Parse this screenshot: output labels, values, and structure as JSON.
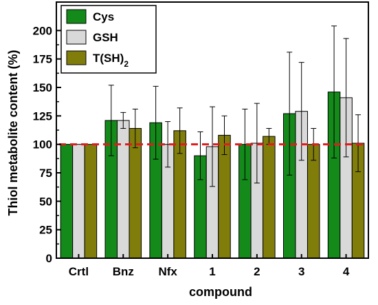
{
  "chart_data": {
    "type": "bar",
    "xlabel": "compound",
    "ylabel": "Thiol metabolite content (%)",
    "categories": [
      "Crtl",
      "Bnz",
      "Nfx",
      "1",
      "2",
      "3",
      "4"
    ],
    "ylim": [
      0,
      225
    ],
    "yticks": [
      0,
      25,
      50,
      75,
      100,
      125,
      150,
      175,
      200
    ],
    "reference_line": {
      "y": 100,
      "color": "#e41a1c",
      "style": "dashed"
    },
    "legend": {
      "placement": "top-left"
    },
    "series": [
      {
        "name": "Cys",
        "color": "#138a1a",
        "values": [
          100,
          121,
          119,
          90,
          100,
          127,
          146
        ],
        "error": [
          0,
          31,
          32,
          21,
          31,
          54,
          58
        ]
      },
      {
        "name": "GSH",
        "color": "#d9d9d9",
        "values": [
          100,
          121,
          100,
          98,
          101,
          129,
          141
        ],
        "error": [
          0,
          7,
          20,
          35,
          35,
          43,
          52
        ]
      },
      {
        "name": "T(SH)",
        "name_sub": "2",
        "color": "#807d0b",
        "values": [
          100,
          114,
          112,
          108,
          107,
          100,
          101
        ],
        "error": [
          0,
          17,
          20,
          17,
          7,
          14,
          25
        ]
      }
    ]
  }
}
